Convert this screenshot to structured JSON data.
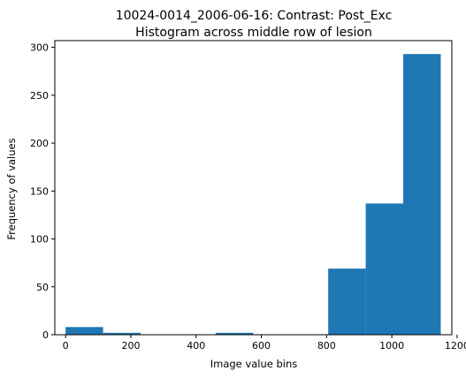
{
  "chart_data": {
    "type": "bar",
    "title_line1": "10024-0014_2006-06-16: Contrast: Post_Exc",
    "title_line2": "Histogram across middle row of lesion",
    "xlabel": "Image value bins",
    "ylabel": "Frequency of values",
    "xlim": [
      -33,
      1184
    ],
    "ylim": [
      0,
      307
    ],
    "xticks": [
      0,
      200,
      400,
      600,
      800,
      1000,
      1200
    ],
    "yticks": [
      0,
      50,
      100,
      150,
      200,
      250,
      300
    ],
    "bins": [
      {
        "x0": 0,
        "x1": 115,
        "count": 8
      },
      {
        "x0": 115,
        "x1": 230,
        "count": 2
      },
      {
        "x0": 230,
        "x1": 345,
        "count": 0
      },
      {
        "x0": 345,
        "x1": 460,
        "count": 0
      },
      {
        "x0": 460,
        "x1": 575,
        "count": 2
      },
      {
        "x0": 575,
        "x1": 690,
        "count": 0
      },
      {
        "x0": 690,
        "x1": 805,
        "count": 0
      },
      {
        "x0": 805,
        "x1": 920,
        "count": 69
      },
      {
        "x0": 920,
        "x1": 1035,
        "count": 137
      },
      {
        "x0": 1035,
        "x1": 1150,
        "count": 293
      }
    ],
    "bar_color": "#1f77b4",
    "grid": false,
    "legend": "none"
  }
}
